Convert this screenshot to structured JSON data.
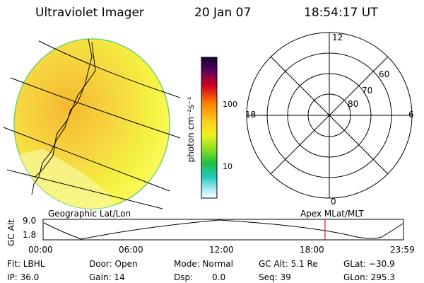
{
  "header": {
    "instrument": "Ultraviolet Imager",
    "date": "20 Jan 07",
    "time": "18:54:17 UT"
  },
  "colorbar": {
    "unit": "photon cm⁻²s⁻¹",
    "ticks": [
      "100",
      "10"
    ]
  },
  "polar_plot": {
    "clock_labels": [
      "12",
      "18",
      "6",
      "0"
    ],
    "lat_labels": [
      "60",
      "70",
      "80"
    ]
  },
  "altitude_strip": {
    "title_left": "Geographic Lat/Lon",
    "title_right": "Apex MLat/MLT",
    "axis_label": "GC Alt",
    "y_ticks": [
      "9.0",
      "1.8"
    ],
    "x_ticks": [
      "00:00",
      "06:00",
      "12:00",
      "18:00",
      "23:59"
    ],
    "marker_color": "#d02020"
  },
  "status": {
    "flt": "Flt: LBHL",
    "ip": "IP: 36.0",
    "door": "Door: Open",
    "gain": "Gain: 14",
    "mode": "Mode: Normal",
    "dsp_label": "Dsp:",
    "dsp_value": "0.0",
    "gc_alt": "GC Alt: 5.1 Re",
    "seq": "Seq: 39",
    "glat": "GLat: −30.9",
    "glon": "GLon: 295.3"
  }
}
